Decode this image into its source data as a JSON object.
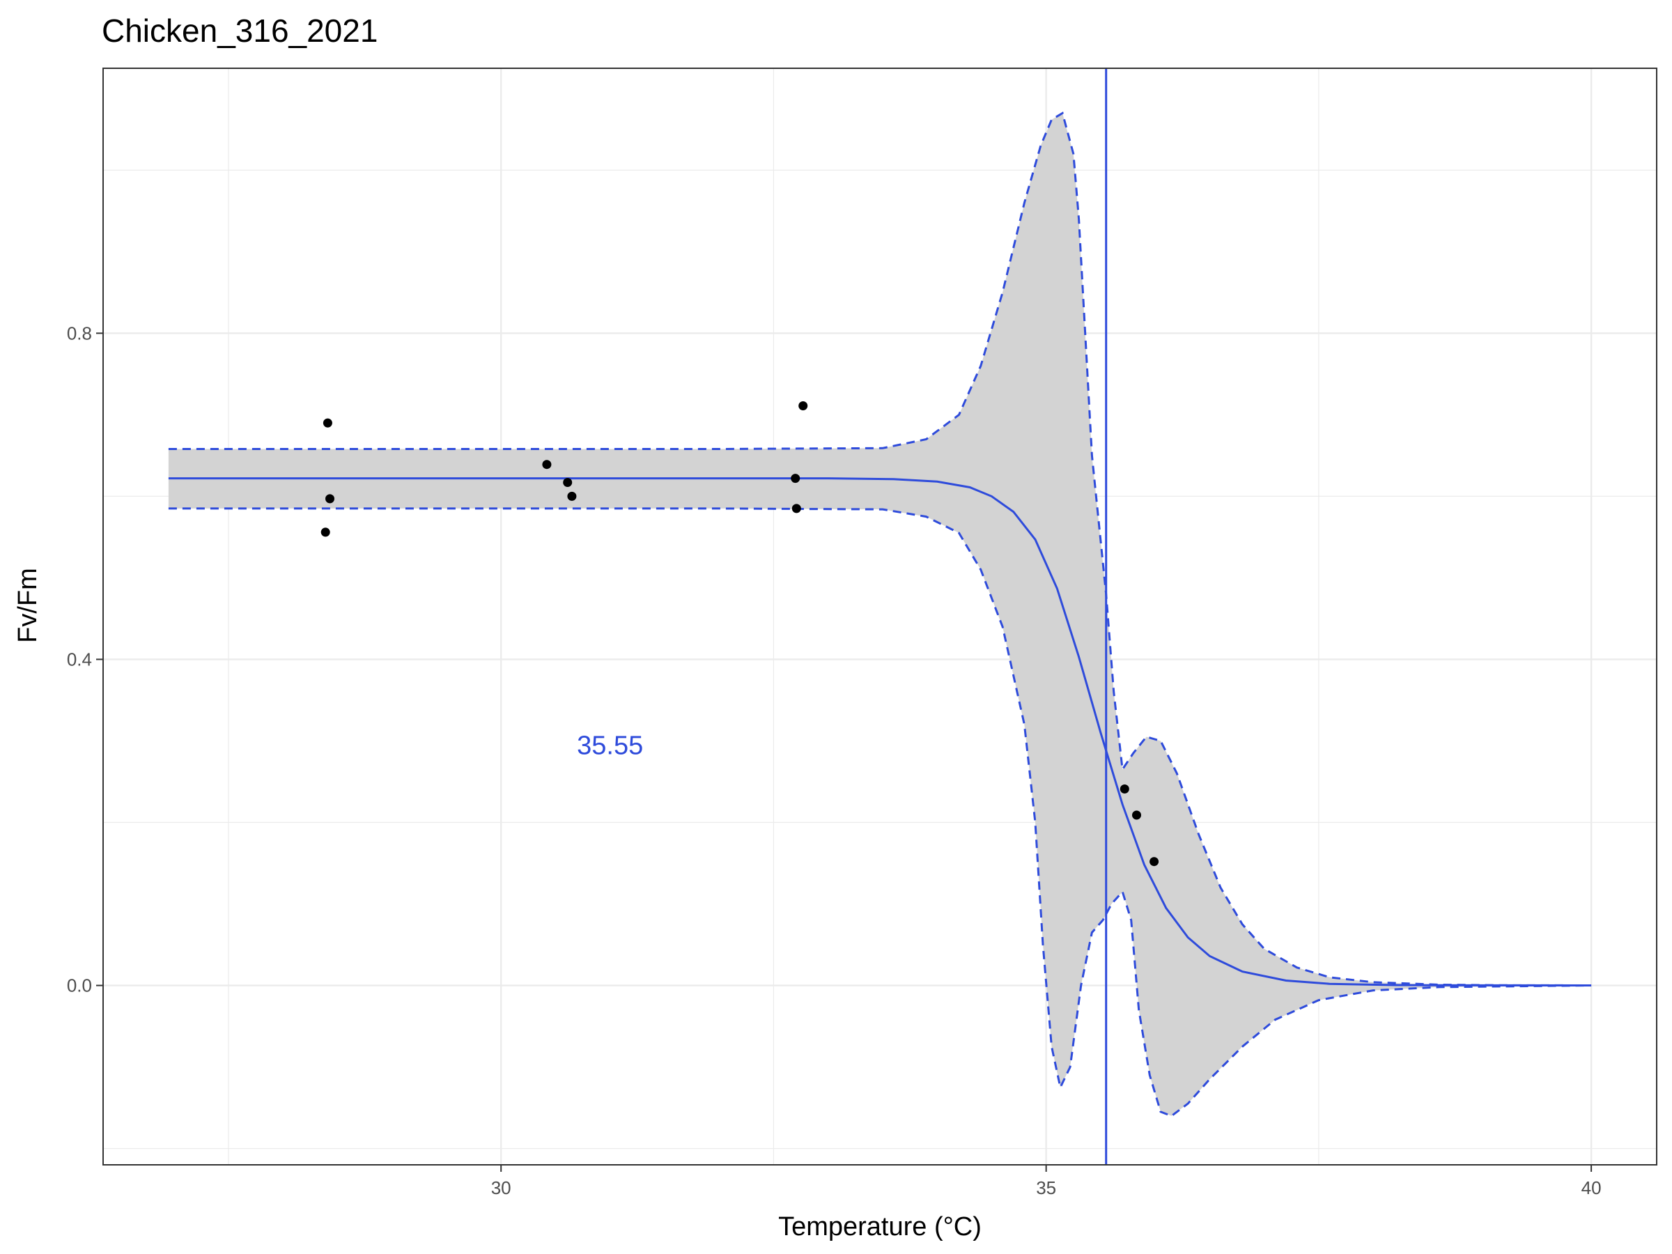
{
  "chart_data": {
    "type": "line",
    "title": "Chicken_316_2021",
    "xlabel": "Temperature (°C)",
    "ylabel": "Fv/Fm",
    "xlim": [
      26.35,
      40.6
    ],
    "ylim": [
      -0.22,
      1.125
    ],
    "x_ticks": [
      30,
      35,
      40
    ],
    "x_tick_labels": [
      "30",
      "35",
      "40"
    ],
    "y_ticks": [
      0.0,
      0.4,
      0.8
    ],
    "y_tick_labels": [
      "0.0",
      "0.4",
      "0.8"
    ],
    "x_minor_grid": [
      27.5,
      32.5,
      37.5
    ],
    "y_minor_grid": [
      -0.2,
      0.2,
      0.6,
      1.0
    ],
    "grid": true,
    "legend": "none",
    "colors": {
      "fit": "#2e4bdb",
      "ribbon_fill": "#d3d3d3",
      "points": "#000000",
      "grid": "#ebebeb",
      "panel_border": "#333333"
    },
    "threshold_line": {
      "x": 35.55,
      "label": "35.55",
      "label_x": 31.0,
      "label_y": 0.295
    },
    "points": {
      "x": [
        28.41,
        28.43,
        28.39,
        30.42,
        30.61,
        30.65,
        32.7,
        32.77,
        32.71,
        35.72,
        35.83,
        35.99
      ],
      "y": [
        0.69,
        0.597,
        0.556,
        0.639,
        0.617,
        0.6,
        0.622,
        0.711,
        0.585,
        0.241,
        0.209,
        0.152
      ]
    },
    "fit_curve": {
      "x": [
        26.95,
        30.0,
        32.0,
        33.0,
        33.6,
        34.0,
        34.3,
        34.5,
        34.7,
        34.9,
        35.1,
        35.3,
        35.5,
        35.7,
        35.9,
        36.1,
        36.3,
        36.5,
        36.8,
        37.2,
        37.6,
        38.2,
        39.0,
        40.0
      ],
      "y": [
        0.622,
        0.622,
        0.622,
        0.622,
        0.621,
        0.618,
        0.611,
        0.6,
        0.581,
        0.547,
        0.487,
        0.403,
        0.31,
        0.222,
        0.148,
        0.095,
        0.059,
        0.036,
        0.017,
        0.006,
        0.002,
        0.0005,
        0.0001,
        0.0
      ]
    },
    "ribbon_upper": {
      "x": [
        26.95,
        32.0,
        33.5,
        33.9,
        34.2,
        34.4,
        34.6,
        34.8,
        34.95,
        35.05,
        35.15,
        35.25,
        35.3,
        35.42,
        35.55,
        35.62,
        35.7,
        35.8,
        35.92,
        36.05,
        36.2,
        36.4,
        36.6,
        36.8,
        37.0,
        37.3,
        37.6,
        38.0,
        38.6,
        39.2,
        40.0
      ],
      "y": [
        0.658,
        0.658,
        0.659,
        0.67,
        0.7,
        0.76,
        0.85,
        0.96,
        1.03,
        1.062,
        1.07,
        1.02,
        0.94,
        0.65,
        0.48,
        0.36,
        0.265,
        0.285,
        0.305,
        0.3,
        0.26,
        0.185,
        0.12,
        0.075,
        0.045,
        0.022,
        0.01,
        0.004,
        0.001,
        0.0002,
        0.0
      ]
    },
    "ribbon_lower": {
      "x": [
        26.95,
        32.0,
        33.5,
        33.9,
        34.2,
        34.4,
        34.6,
        34.8,
        34.9,
        34.97,
        35.05,
        35.13,
        35.22,
        35.32,
        35.42,
        35.52,
        35.6,
        35.7,
        35.78,
        35.85,
        35.95,
        36.05,
        36.15,
        36.3,
        36.5,
        36.8,
        37.1,
        37.5,
        38.0,
        38.6,
        40.0
      ],
      "y": [
        0.585,
        0.585,
        0.584,
        0.575,
        0.555,
        0.51,
        0.44,
        0.32,
        0.2,
        0.05,
        -0.075,
        -0.125,
        -0.1,
        0.0,
        0.065,
        0.08,
        0.1,
        0.115,
        0.08,
        -0.03,
        -0.11,
        -0.155,
        -0.16,
        -0.145,
        -0.115,
        -0.075,
        -0.042,
        -0.018,
        -0.006,
        -0.002,
        0.0
      ]
    }
  }
}
